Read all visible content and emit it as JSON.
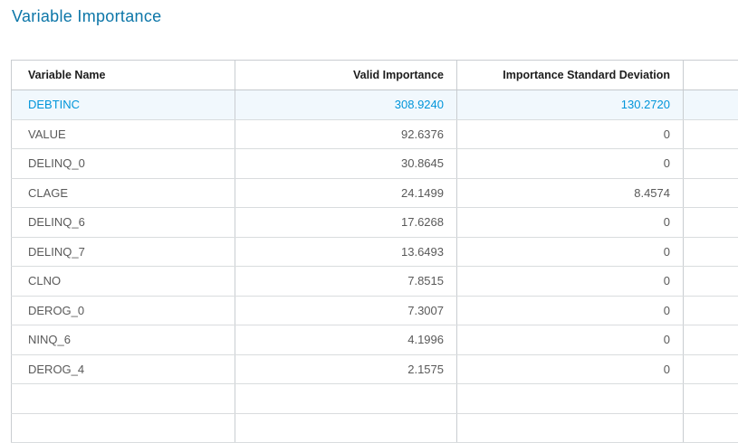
{
  "page": {
    "title": "Variable Importance"
  },
  "table": {
    "columns": [
      {
        "label": "Variable Name"
      },
      {
        "label": "Valid Importance"
      },
      {
        "label": "Importance Standard Deviation"
      },
      {
        "label": ""
      }
    ],
    "rows": [
      {
        "name": "DEBTINC",
        "valid_importance": "308.9240",
        "std_dev": "130.2720",
        "selected": true
      },
      {
        "name": "VALUE",
        "valid_importance": "92.6376",
        "std_dev": "0",
        "selected": false
      },
      {
        "name": "DELINQ_0",
        "valid_importance": "30.8645",
        "std_dev": "0",
        "selected": false
      },
      {
        "name": "CLAGE",
        "valid_importance": "24.1499",
        "std_dev": "8.4574",
        "selected": false
      },
      {
        "name": "DELINQ_6",
        "valid_importance": "17.6268",
        "std_dev": "0",
        "selected": false
      },
      {
        "name": "DELINQ_7",
        "valid_importance": "13.6493",
        "std_dev": "0",
        "selected": false
      },
      {
        "name": "CLNO",
        "valid_importance": "7.8515",
        "std_dev": "0",
        "selected": false
      },
      {
        "name": "DEROG_0",
        "valid_importance": "7.3007",
        "std_dev": "0",
        "selected": false
      },
      {
        "name": "NINQ_6",
        "valid_importance": "4.1996",
        "std_dev": "0",
        "selected": false
      },
      {
        "name": "DEROG_4",
        "valid_importance": "2.1575",
        "std_dev": "0",
        "selected": false
      },
      {
        "name": "",
        "valid_importance": "",
        "std_dev": "",
        "selected": false
      },
      {
        "name": "",
        "valid_importance": "",
        "std_dev": "",
        "selected": false
      }
    ]
  },
  "colors": {
    "title_text": "#0c76a8",
    "selected_row_text": "#0095da",
    "selected_row_bg": "#f1f8fd",
    "header_text": "#1d1d1d",
    "body_text": "#595959",
    "grid_vertical": "#c9cdd1",
    "grid_horizontal": "#d9dcde"
  }
}
